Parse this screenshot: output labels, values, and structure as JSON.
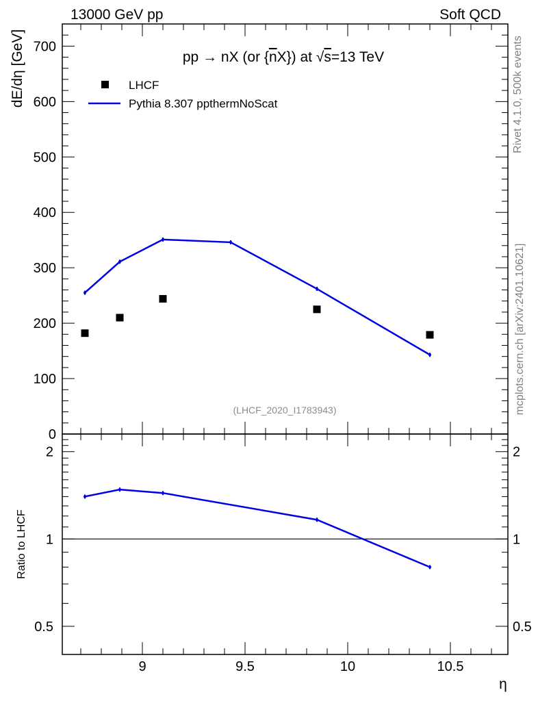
{
  "header": {
    "left": "13000 GeV pp",
    "right": "Soft QCD"
  },
  "side_labels": {
    "rivet": "Rivet 4.1.0,  500k events",
    "mcplots": "mcplots.cern.ch [arXiv:2401.10621]"
  },
  "chart_data": [
    {
      "type": "scatter",
      "panel": "main",
      "title": "pp → nX (or n̄X) at √s=13 TeV",
      "title_parts": {
        "pre": "pp ",
        "arrow": "→",
        "mid": " nX (or {",
        "nbar": "n",
        "post": "X}) at ",
        "sqrt": "√",
        "s": "s",
        "tail": "=13 TeV"
      },
      "ylabel": "dE/dη [GeV]",
      "xlabel": "",
      "xlim": [
        8.61,
        10.78
      ],
      "ylim": [
        0,
        740
      ],
      "y_ticks": [
        0,
        100,
        200,
        300,
        400,
        500,
        600,
        700
      ],
      "y_tick_labels": [
        "0",
        "100",
        "200",
        "300",
        "400",
        "500",
        "600",
        "700"
      ],
      "watermark": "(LHCF_2020_I1783943)",
      "legend": {
        "placement": "top-left",
        "entries": [
          {
            "label": "LHCF",
            "marker": "square",
            "color": "#000000"
          },
          {
            "label": "Pythia 8.307 ppthermNoScat",
            "marker": "line",
            "color": "#0000e6"
          }
        ]
      },
      "series": [
        {
          "name": "LHCF",
          "x": [
            8.72,
            8.89,
            9.1,
            9.85,
            10.4
          ],
          "y": [
            182,
            210,
            244,
            225,
            179
          ],
          "color": "#000000"
        },
        {
          "name": "Pythia 8.307 ppthermNoScat",
          "x": [
            8.72,
            8.89,
            9.1,
            9.43,
            9.85,
            10.4
          ],
          "y": [
            255,
            311,
            351,
            346,
            262,
            143
          ],
          "color": "#0000e6"
        }
      ]
    },
    {
      "type": "line",
      "panel": "ratio",
      "ylabel": "Ratio to LHCF",
      "xlabel": "η",
      "xlim": [
        8.61,
        10.78
      ],
      "ylim": [
        0.4,
        2.3
      ],
      "y_scale": "log",
      "x_ticks": [
        9,
        9.5,
        10,
        10.5
      ],
      "x_tick_labels": [
        "9",
        "9.5",
        "10",
        "10.5"
      ],
      "y_ticks": [
        0.5,
        1,
        2
      ],
      "y_tick_labels": [
        "0.5",
        "1",
        "2"
      ],
      "reference_line": 1,
      "series": [
        {
          "name": "Pythia 8.307 ppthermNoScat / LHCF",
          "x": [
            8.72,
            8.89,
            9.1,
            9.85,
            10.4
          ],
          "y": [
            1.4,
            1.48,
            1.44,
            1.165,
            0.8
          ],
          "color": "#0000e6"
        }
      ]
    }
  ]
}
